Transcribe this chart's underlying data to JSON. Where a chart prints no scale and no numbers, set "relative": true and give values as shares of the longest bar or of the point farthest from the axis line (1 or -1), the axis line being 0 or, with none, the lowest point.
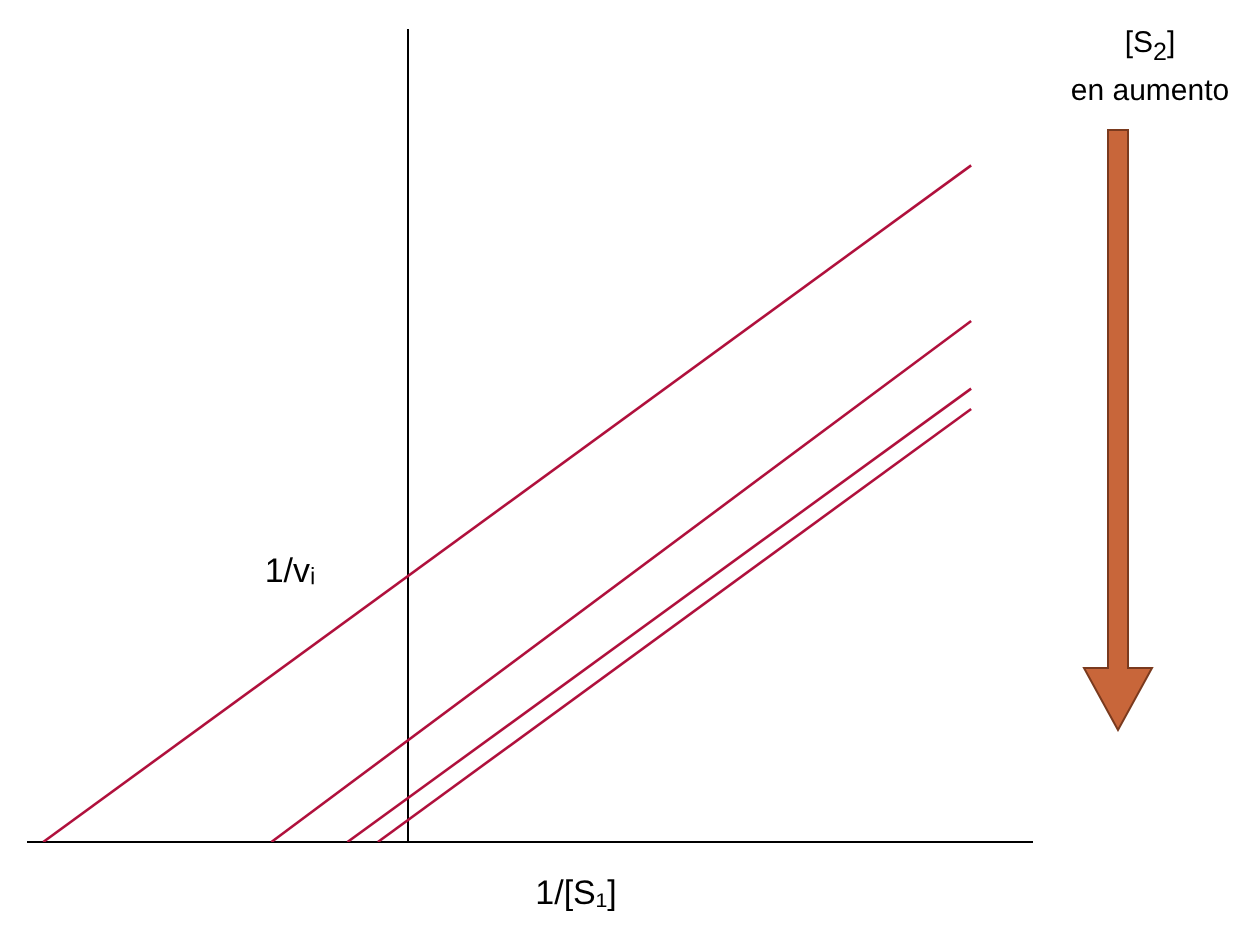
{
  "chart_data": {
    "type": "line",
    "relative": true,
    "xlabel": "1/[S₁]",
    "ylabel": "1/vᵢ",
    "annotations": [
      "[S$_{2}$] en aumento"
    ],
    "grid": false,
    "legend": false,
    "marker": "none",
    "line_style": "solid",
    "categories": [
      null,
      null,
      null,
      null,
      null,
      null,
      null,
      null,
      null,
      null,
      null,
      null,
      null,
      null,
      null,
      null,
      null,
      null,
      null,
      null,
      null,
      null,
      null,
      null,
      null,
      null,
      null,
      null,
      null,
      null,
      null,
      null,
      null,
      null,
      null,
      null,
      null,
      null,
      null,
      null,
      null,
      null,
      null,
      null,
      null,
      null,
      null,
      null,
      null,
      null,
      null,
      null,
      null,
      null,
      null,
      null,
      null,
      null,
      null,
      null,
      null,
      null,
      null,
      null,
      null,
      null,
      null
    ],
    "series": [
      {
        "color": "#b0103c",
        "values": [
          null,
          0,
          null,
          null,
          null,
          null,
          null,
          null,
          null,
          null,
          null,
          null,
          null,
          null,
          null,
          null,
          null,
          null,
          null,
          null,
          null,
          null,
          null,
          null,
          null,
          null,
          null,
          null,
          null,
          null,
          null,
          null,
          null,
          null,
          null,
          null,
          null,
          null,
          null,
          null,
          null,
          null,
          null,
          null,
          null,
          null,
          null,
          null,
          null,
          null,
          null,
          null,
          null,
          null,
          null,
          null,
          null,
          null,
          null,
          null,
          null,
          null,
          1,
          null,
          null,
          null,
          null
        ]
      },
      {
        "color": "#b0103c",
        "values": [
          null,
          null,
          null,
          null,
          null,
          null,
          null,
          null,
          null,
          null,
          null,
          null,
          null,
          null,
          null,
          null,
          0,
          null,
          null,
          null,
          null,
          null,
          null,
          null,
          null,
          null,
          null,
          null,
          null,
          null,
          null,
          null,
          null,
          null,
          null,
          null,
          null,
          null,
          null,
          null,
          null,
          null,
          null,
          null,
          null,
          null,
          null,
          null,
          null,
          null,
          null,
          null,
          null,
          null,
          null,
          null,
          null,
          null,
          null,
          null,
          null,
          null,
          0.77,
          null,
          null,
          null,
          null
        ]
      },
      {
        "color": "#b0103c",
        "values": [
          null,
          null,
          null,
          null,
          null,
          null,
          null,
          null,
          null,
          null,
          null,
          null,
          null,
          null,
          null,
          null,
          null,
          null,
          null,
          null,
          null,
          0,
          null,
          null,
          null,
          null,
          null,
          null,
          null,
          null,
          null,
          null,
          null,
          null,
          null,
          null,
          null,
          null,
          null,
          null,
          null,
          null,
          null,
          null,
          null,
          null,
          null,
          null,
          null,
          null,
          null,
          null,
          null,
          null,
          null,
          null,
          null,
          null,
          null,
          null,
          null,
          null,
          0.67,
          null,
          null,
          null,
          null
        ]
      },
      {
        "color": "#b0103c",
        "values": [
          null,
          null,
          null,
          null,
          null,
          null,
          null,
          null,
          null,
          null,
          null,
          null,
          null,
          null,
          null,
          null,
          null,
          null,
          null,
          null,
          null,
          null,
          null,
          0,
          null,
          null,
          null,
          null,
          null,
          null,
          null,
          null,
          null,
          null,
          null,
          null,
          null,
          null,
          null,
          null,
          null,
          null,
          null,
          null,
          null,
          null,
          null,
          null,
          null,
          null,
          null,
          null,
          null,
          null,
          null,
          null,
          null,
          null,
          null,
          null,
          null,
          null,
          0.64,
          null,
          null,
          null,
          null
        ]
      }
    ]
  }
}
